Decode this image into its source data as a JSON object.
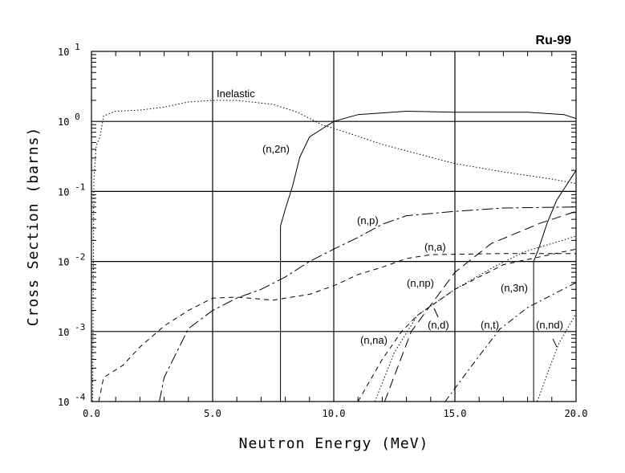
{
  "chart_data": {
    "type": "line",
    "title": "Ru-99",
    "xlabel": "Neutron Energy (MeV)",
    "ylabel": "Cross Section (barns)",
    "xlim": [
      0,
      20
    ],
    "ylim": [
      0.0001,
      10
    ],
    "yscale": "log",
    "grid": true,
    "x_ticks": [
      "0.0",
      "5.0",
      "10.0",
      "15.0",
      "20.0"
    ],
    "y_ticks": [
      {
        "base": "10",
        "exp": "1"
      },
      {
        "base": "10",
        "exp": "0"
      },
      {
        "base": "10",
        "exp": "-1"
      },
      {
        "base": "10",
        "exp": "-2"
      },
      {
        "base": "10",
        "exp": "-3"
      },
      {
        "base": "10",
        "exp": "-4"
      }
    ],
    "series": [
      {
        "name": "Inelastic",
        "style": "dotted",
        "x": [
          0.05,
          0.1,
          0.2,
          0.35,
          0.5,
          1,
          2,
          3,
          4,
          5,
          6,
          7.5,
          8.5,
          9.5,
          10.5,
          12,
          13,
          15,
          17,
          19,
          20
        ],
        "y": [
          0.0001,
          0.15,
          0.45,
          0.6,
          1.2,
          1.4,
          1.45,
          1.6,
          1.9,
          2.0,
          2.0,
          1.75,
          1.35,
          0.9,
          0.7,
          0.47,
          0.38,
          0.25,
          0.19,
          0.15,
          0.13
        ]
      },
      {
        "name": "(n,2n)",
        "style": "solid",
        "x": [
          7.8,
          7.8,
          8.0,
          8.3,
          8.6,
          9.0,
          10,
          11,
          13,
          15,
          18,
          19.5,
          20
        ],
        "y": [
          0.0001,
          0.032,
          0.056,
          0.12,
          0.31,
          0.6,
          1.0,
          1.25,
          1.4,
          1.35,
          1.35,
          1.25,
          1.1
        ]
      },
      {
        "name": "(n,p)",
        "style": "longdashdot",
        "x": [
          2.8,
          3,
          4,
          5,
          6,
          7,
          8,
          9,
          10,
          11,
          12,
          13,
          15,
          17,
          20
        ],
        "y": [
          0.0001,
          0.00022,
          0.0011,
          0.002,
          0.003,
          0.004,
          0.006,
          0.01,
          0.015,
          0.022,
          0.034,
          0.045,
          0.052,
          0.058,
          0.06
        ]
      },
      {
        "name": "(n,a)",
        "style": "dashed",
        "x": [
          0.3,
          0.5,
          1.3,
          2,
          3,
          4,
          5,
          6,
          7.5,
          9,
          10,
          11,
          12,
          13,
          14,
          17,
          20
        ],
        "y": [
          0.0001,
          0.00022,
          0.00033,
          0.0006,
          0.0012,
          0.002,
          0.003,
          0.0031,
          0.0028,
          0.0034,
          0.0045,
          0.0065,
          0.0083,
          0.011,
          0.0125,
          0.013,
          0.013
        ]
      },
      {
        "name": "(n,np)",
        "style": "longdash",
        "x": [
          12.1,
          13.2,
          15,
          16.5,
          18.5,
          20
        ],
        "y": [
          0.0001,
          0.001,
          0.007,
          0.018,
          0.035,
          0.052
        ]
      },
      {
        "name": "(n,d)",
        "style": "dotted",
        "x": [
          11.7,
          12.5,
          13.45,
          15,
          16.5,
          17.85,
          20
        ],
        "y": [
          0.0001,
          0.0005,
          0.0017,
          0.004,
          0.008,
          0.0137,
          0.023
        ]
      },
      {
        "name": "(n,na)",
        "style": "dashed",
        "x": [
          11.0,
          12.0,
          12.8,
          13.45,
          15,
          17,
          20
        ],
        "y": [
          0.0001,
          0.0004,
          0.001,
          0.0017,
          0.004,
          0.009,
          0.015
        ]
      },
      {
        "name": "(n,t)",
        "style": "dashdot",
        "x": [
          14.6,
          15.65,
          16.85,
          18,
          20
        ],
        "y": [
          0.0001,
          0.00031,
          0.00108,
          0.0022,
          0.005
        ]
      },
      {
        "name": "(n,3n)",
        "style": "solid",
        "x": [
          18.25,
          18.25,
          18.45,
          18.8,
          19.2,
          20
        ],
        "y": [
          0.0001,
          0.01,
          0.015,
          0.035,
          0.075,
          0.2
        ]
      },
      {
        "name": "(n,nd)",
        "style": "dotted",
        "x": [
          18.4,
          18.9,
          19.3,
          20
        ],
        "y": [
          0.0001,
          0.0003,
          0.00069,
          0.0018
        ]
      }
    ]
  }
}
